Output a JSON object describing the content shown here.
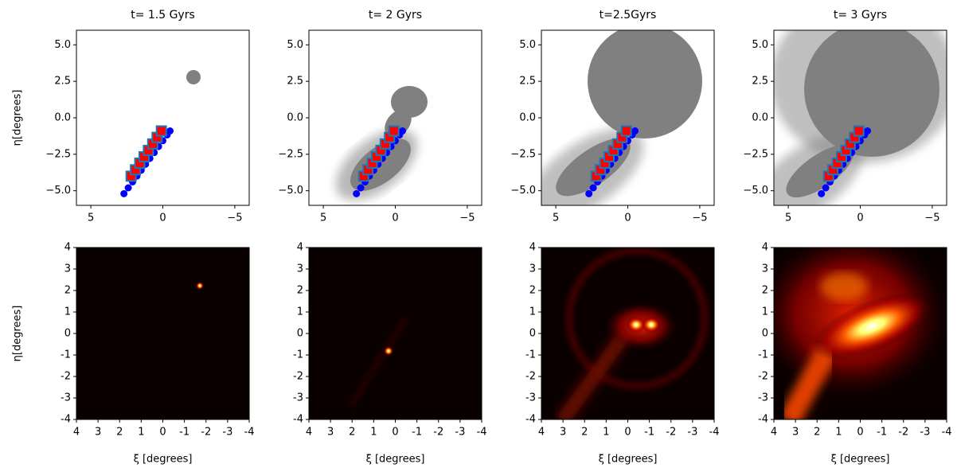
{
  "chart_data": [
    {
      "type": "scatter",
      "title": "t= 1.5 Gyrs",
      "ylabel": "η[degrees]",
      "xlim": [
        6,
        -6
      ],
      "ylim": [
        -6,
        6
      ],
      "xticks": [
        5,
        0,
        {
          "value": -5,
          "label": "−5"
        }
      ],
      "yticks": [
        {
          "value": -5,
          "label": "−5.0"
        },
        {
          "value": -2.5,
          "label": "−2.5"
        },
        {
          "value": 0,
          "label": "0.0"
        },
        {
          "value": 2.5,
          "label": "2.5"
        },
        {
          "value": 5,
          "label": "5.0"
        }
      ],
      "series": [
        {
          "marker": "circle",
          "color": "#0000ff",
          "x": [
            2.7,
            2.4,
            2.1,
            1.8,
            1.5,
            1.2,
            0.9,
            0.6,
            0.3,
            0.0,
            -0.3,
            -0.5
          ],
          "values": [
            -5.2,
            -4.8,
            -4.39,
            -3.99,
            -3.59,
            -3.18,
            -2.78,
            -2.38,
            -1.97,
            -1.57,
            -1.17,
            -0.9
          ]
        },
        {
          "marker": "square",
          "color": "#ff0000",
          "edgecolor": "#1f77b4",
          "x": [
            2.2,
            1.9,
            1.6,
            1.3,
            1.0,
            0.7,
            0.4,
            0.1
          ],
          "values": [
            -4.0,
            -3.56,
            -3.11,
            -2.67,
            -2.23,
            -1.79,
            -1.34,
            -0.9
          ]
        }
      ]
    },
    {
      "type": "scatter",
      "title": "t= 2 Gyrs",
      "xlim": [
        6,
        -6
      ],
      "ylim": [
        -6,
        6
      ],
      "xticks": [
        5,
        0,
        {
          "value": -5,
          "label": "−5"
        }
      ],
      "yticks": [
        {
          "value": -5,
          "label": "−5.0"
        },
        {
          "value": -2.5,
          "label": "−2.5"
        },
        {
          "value": 0,
          "label": "0.0"
        },
        {
          "value": 2.5,
          "label": "2.5"
        },
        {
          "value": 5,
          "label": "5.0"
        }
      ],
      "series": [
        {
          "marker": "circle",
          "color": "#0000ff",
          "x": [
            2.7,
            2.4,
            2.1,
            1.8,
            1.5,
            1.2,
            0.9,
            0.6,
            0.3,
            0.0,
            -0.3,
            -0.5
          ],
          "values": [
            -5.2,
            -4.8,
            -4.39,
            -3.99,
            -3.59,
            -3.18,
            -2.78,
            -2.38,
            -1.97,
            -1.57,
            -1.17,
            -0.9
          ]
        },
        {
          "marker": "square",
          "color": "#ff0000",
          "edgecolor": "#1f77b4",
          "x": [
            2.2,
            1.9,
            1.6,
            1.3,
            1.0,
            0.7,
            0.4,
            0.1
          ],
          "values": [
            -4.0,
            -3.56,
            -3.11,
            -2.67,
            -2.23,
            -1.79,
            -1.34,
            -0.9
          ]
        }
      ]
    },
    {
      "type": "scatter",
      "title": "t=2.5Gyrs",
      "xlim": [
        6,
        -6
      ],
      "ylim": [
        -6,
        6
      ],
      "xticks": [
        5,
        0,
        {
          "value": -5,
          "label": "−5"
        }
      ],
      "yticks": [
        {
          "value": -5,
          "label": "−5.0"
        },
        {
          "value": -2.5,
          "label": "−2.5"
        },
        {
          "value": 0,
          "label": "0.0"
        },
        {
          "value": 2.5,
          "label": "2.5"
        },
        {
          "value": 5,
          "label": "5.0"
        }
      ],
      "series": [
        {
          "marker": "circle",
          "color": "#0000ff",
          "x": [
            2.7,
            2.4,
            2.1,
            1.8,
            1.5,
            1.2,
            0.9,
            0.6,
            0.3,
            0.0,
            -0.3,
            -0.5
          ],
          "values": [
            -5.2,
            -4.8,
            -4.39,
            -3.99,
            -3.59,
            -3.18,
            -2.78,
            -2.38,
            -1.97,
            -1.57,
            -1.17,
            -0.9
          ]
        },
        {
          "marker": "square",
          "color": "#ff0000",
          "edgecolor": "#1f77b4",
          "x": [
            2.2,
            1.9,
            1.6,
            1.3,
            1.0,
            0.7,
            0.4,
            0.1
          ],
          "values": [
            -4.0,
            -3.56,
            -3.11,
            -2.67,
            -2.23,
            -1.79,
            -1.34,
            -0.9
          ]
        }
      ]
    },
    {
      "type": "scatter",
      "title": "t= 3 Gyrs",
      "xlim": [
        6,
        -6
      ],
      "ylim": [
        -6,
        6
      ],
      "xticks": [
        5,
        0,
        {
          "value": -5,
          "label": "−5"
        }
      ],
      "yticks": [
        {
          "value": -5,
          "label": "−5.0"
        },
        {
          "value": -2.5,
          "label": "−2.5"
        },
        {
          "value": 0,
          "label": "0.0"
        },
        {
          "value": 2.5,
          "label": "2.5"
        },
        {
          "value": 5,
          "label": "5.0"
        }
      ],
      "series": [
        {
          "marker": "circle",
          "color": "#0000ff",
          "x": [
            2.7,
            2.4,
            2.1,
            1.8,
            1.5,
            1.2,
            0.9,
            0.6,
            0.3,
            0.0,
            -0.3,
            -0.5
          ],
          "values": [
            -5.2,
            -4.8,
            -4.39,
            -3.99,
            -3.59,
            -3.18,
            -2.78,
            -2.38,
            -1.97,
            -1.57,
            -1.17,
            -0.9
          ]
        },
        {
          "marker": "square",
          "color": "#ff0000",
          "edgecolor": "#1f77b4",
          "x": [
            2.2,
            1.9,
            1.6,
            1.3,
            1.0,
            0.7,
            0.4,
            0.1
          ],
          "values": [
            -4.0,
            -3.56,
            -3.11,
            -2.67,
            -2.23,
            -1.79,
            -1.34,
            -0.9
          ]
        }
      ]
    },
    {
      "type": "heatmap",
      "ylabel": "η[degrees]",
      "xlabel": "ξ [degrees]",
      "xlim": [
        4,
        -4
      ],
      "ylim": [
        -4,
        4
      ],
      "xticks": [
        4,
        3,
        2,
        1,
        0,
        -1,
        -2,
        -3,
        -4
      ],
      "yticks": [
        -4,
        -3,
        -2,
        -1,
        0,
        1,
        2,
        3,
        4
      ]
    },
    {
      "type": "heatmap",
      "xlabel": "ξ [degrees]",
      "xlim": [
        4,
        -4
      ],
      "ylim": [
        -4,
        4
      ],
      "xticks": [
        4,
        3,
        2,
        1,
        0,
        -1,
        -2,
        -3,
        -4
      ],
      "yticks": [
        -4,
        -3,
        -2,
        -1,
        0,
        1,
        2,
        3,
        4
      ]
    },
    {
      "type": "heatmap",
      "xlabel": "ξ [degrees]",
      "xlim": [
        4,
        -4
      ],
      "ylim": [
        -4,
        4
      ],
      "xticks": [
        4,
        3,
        2,
        1,
        0,
        -1,
        -2,
        -3,
        -4
      ],
      "yticks": [
        -4,
        -3,
        -2,
        -1,
        0,
        1,
        2,
        3,
        4
      ]
    },
    {
      "type": "heatmap",
      "xlabel": "ξ [degrees]",
      "xlim": [
        4,
        -4
      ],
      "ylim": [
        -4,
        4
      ],
      "xticks": [
        4,
        3,
        2,
        1,
        0,
        -1,
        -2,
        -3,
        -4
      ],
      "yticks": [
        -4,
        -3,
        -2,
        -1,
        0,
        1,
        2,
        3,
        4
      ]
    }
  ]
}
